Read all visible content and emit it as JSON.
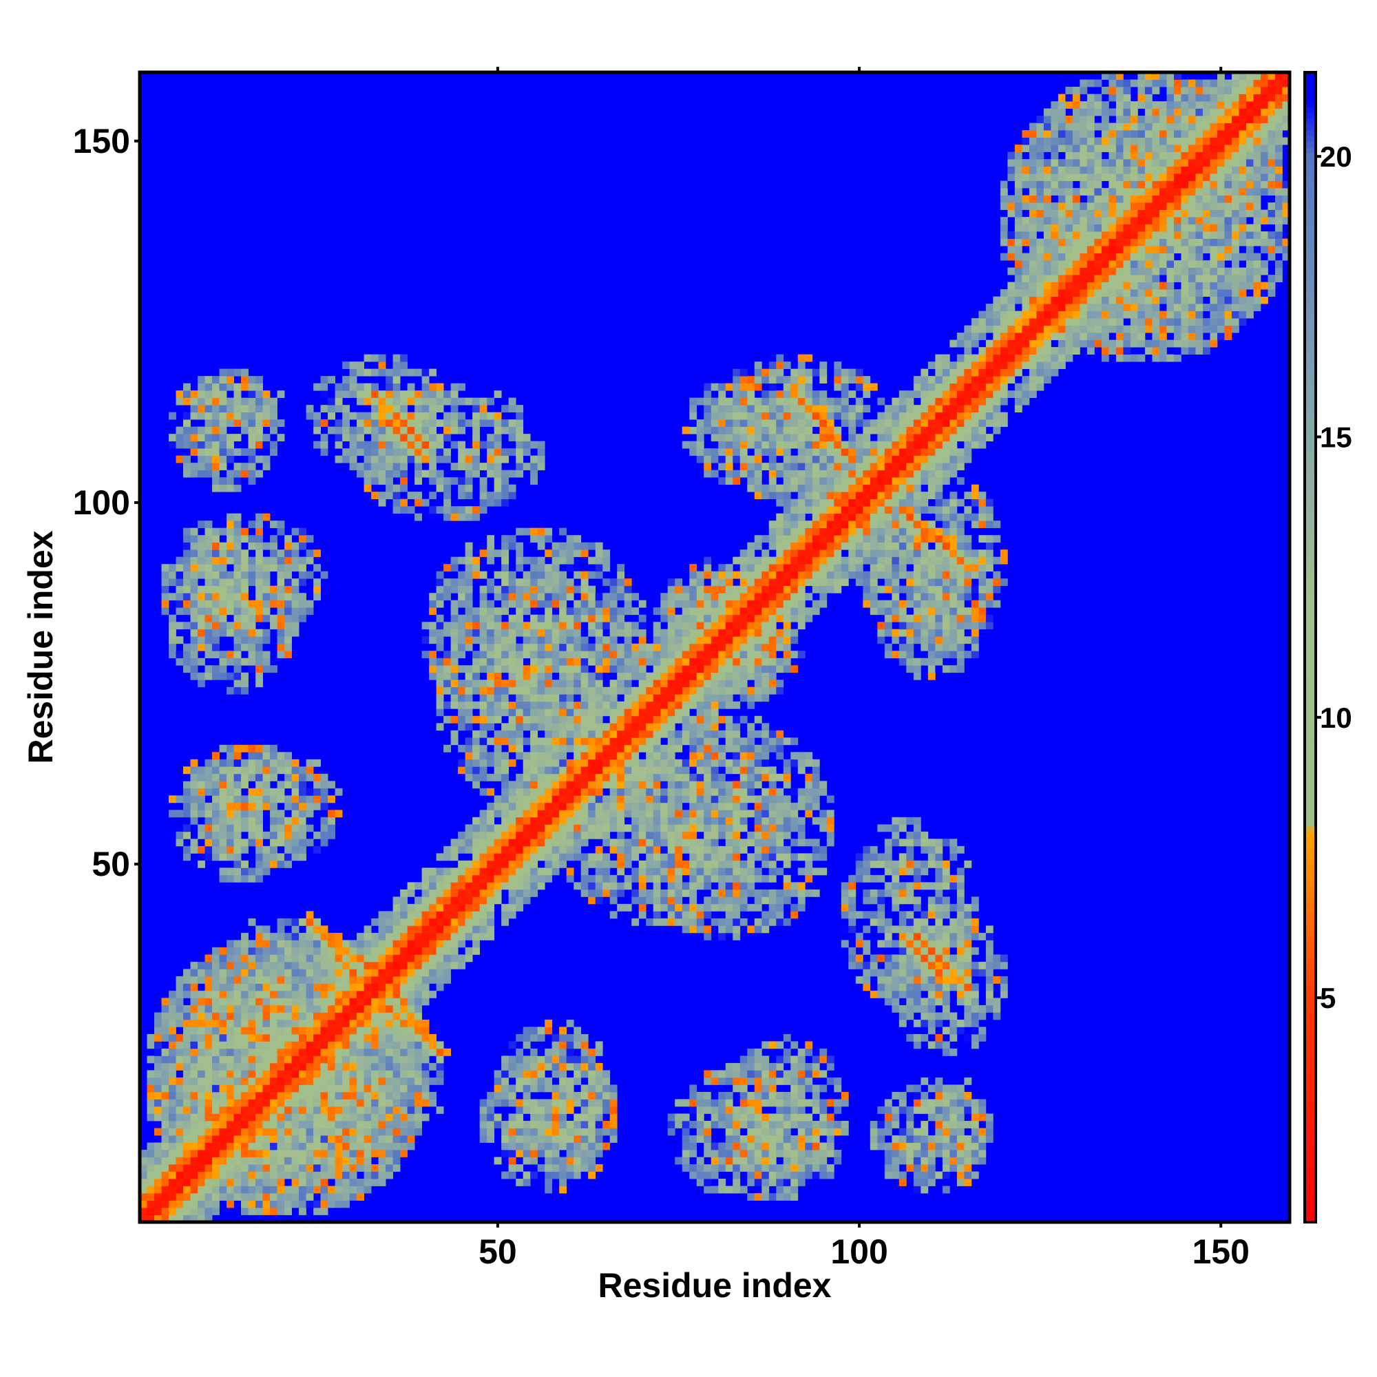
{
  "chart_data": {
    "type": "heatmap",
    "title": "",
    "xlabel": "Residue index",
    "ylabel": "Residue index",
    "n_residues": 159,
    "xlim": [
      1,
      159
    ],
    "ylim": [
      1,
      159
    ],
    "x_ticks": [
      50,
      100,
      150
    ],
    "y_ticks": [
      50,
      100,
      150
    ],
    "x_tick_labels": [
      "50",
      "100",
      "150"
    ],
    "y_tick_labels": [
      "50",
      "100",
      "150"
    ],
    "colorbar": {
      "ticks": [
        5,
        10,
        15,
        20
      ],
      "tick_labels": [
        "5",
        "10",
        "15",
        "20"
      ],
      "range": [
        1,
        21.5
      ],
      "stops": [
        {
          "value": 1,
          "color": "#ff0000"
        },
        {
          "value": 5,
          "color": "#ff3a00"
        },
        {
          "value": 8,
          "color": "#ffa500"
        },
        {
          "value": 8.05,
          "color": "#9fbf86"
        },
        {
          "value": 12,
          "color": "#a4bf8e"
        },
        {
          "value": 16,
          "color": "#7f9fb0"
        },
        {
          "value": 20,
          "color": "#5577c4"
        },
        {
          "value": 21,
          "color": "#0000ff"
        }
      ],
      "background_color": "#0000ff"
    },
    "contact_regions": [
      {
        "x": [
          8,
          30
        ],
        "y": [
          2,
          42
        ],
        "level": "mid"
      },
      {
        "x": [
          2,
          40
        ],
        "y": [
          2,
          40
        ],
        "level": "diagonal-band"
      },
      {
        "x": [
          8,
          28
        ],
        "y": [
          50,
          66
        ],
        "level": "mid"
      },
      {
        "x": [
          4,
          26
        ],
        "y": [
          82,
          98
        ],
        "level": "mid"
      },
      {
        "x": [
          6,
          20
        ],
        "y": [
          110,
          118
        ],
        "level": "mid"
      },
      {
        "x": [
          24,
          44
        ],
        "y": [
          104,
          120
        ],
        "level": "mid"
      },
      {
        "x": [
          33,
          40
        ],
        "y": [
          108,
          115
        ],
        "level": "strong-antiparallel"
      },
      {
        "x": [
          27,
          34
        ],
        "y": [
          34,
          40
        ],
        "level": "strong-antiparallel"
      },
      {
        "x": [
          34,
          42
        ],
        "y": [
          24,
          31
        ],
        "level": "strong-antiparallel"
      },
      {
        "x": [
          48,
          66
        ],
        "y": [
          5,
          24
        ],
        "level": "mid"
      },
      {
        "x": [
          74,
          96
        ],
        "y": [
          4,
          22
        ],
        "level": "mid"
      },
      {
        "x": [
          42,
          70
        ],
        "y": [
          58,
          88
        ],
        "level": "mid"
      },
      {
        "x": [
          68,
          96
        ],
        "y": [
          40,
          70
        ],
        "level": "mid"
      },
      {
        "x": [
          80,
          104
        ],
        "y": [
          100,
          120
        ],
        "level": "mid"
      },
      {
        "x": [
          91,
          98
        ],
        "y": [
          107,
          115
        ],
        "level": "strong-antiparallel"
      },
      {
        "x": [
          98,
          116
        ],
        "y": [
          30,
          56
        ],
        "level": "mid"
      },
      {
        "x": [
          106,
          112
        ],
        "y": [
          34,
          40
        ],
        "level": "strong-antiparallel"
      },
      {
        "x": [
          102,
          118
        ],
        "y": [
          76,
          96
        ],
        "level": "mid"
      },
      {
        "x": [
          106,
          114
        ],
        "y": [
          92,
          99
        ],
        "level": "strong-antiparallel"
      },
      {
        "x": [
          102,
          118
        ],
        "y": [
          5,
          20
        ],
        "level": "mid"
      },
      {
        "x": [
          72,
          90
        ],
        "y": [
          72,
          92
        ],
        "level": "helix-band"
      },
      {
        "x": [
          120,
          159
        ],
        "y": [
          120,
          159
        ],
        "level": "diagonal-band"
      }
    ]
  }
}
